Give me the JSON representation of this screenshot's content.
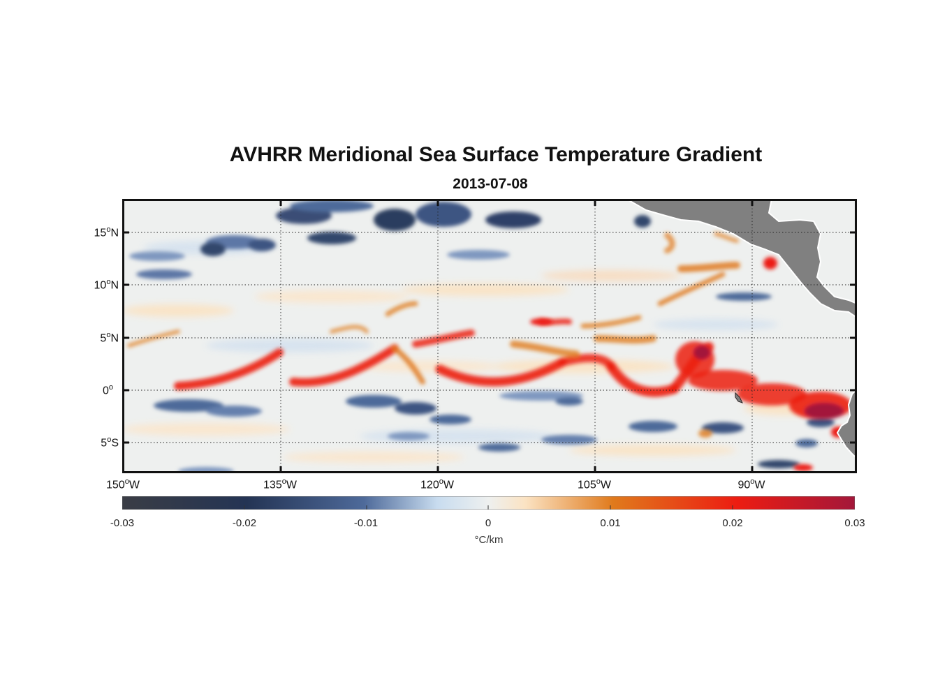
{
  "title": "AVHRR Meridional Sea Surface Temperature Gradient",
  "subtitle": "2013-07-08",
  "map": {
    "lon_range": [
      -150,
      -80
    ],
    "lat_range": [
      -8,
      18
    ],
    "lat_ticks": [
      {
        "value": 15,
        "num": "15",
        "hem": "N"
      },
      {
        "value": 10,
        "num": "10",
        "hem": "N"
      },
      {
        "value": 5,
        "num": "5",
        "hem": "N"
      },
      {
        "value": 0,
        "num": "0",
        "hem": ""
      },
      {
        "value": -5,
        "num": "5",
        "hem": "S"
      }
    ],
    "lon_ticks": [
      {
        "value": -150,
        "num": "150",
        "hem": "W"
      },
      {
        "value": -135,
        "num": "135",
        "hem": "W"
      },
      {
        "value": -120,
        "num": "120",
        "hem": "W"
      },
      {
        "value": -105,
        "num": "105",
        "hem": "W"
      },
      {
        "value": -90,
        "num": "90",
        "hem": "W"
      }
    ],
    "land_color": "#808080"
  },
  "colorbar": {
    "range": [
      -0.03,
      0.03
    ],
    "tick_labels": [
      "-0.03",
      "-0.02",
      "-0.01",
      "0",
      "0.01",
      "0.02",
      "0.03"
    ],
    "unit": "°C/km",
    "colors": [
      "#3a3d45",
      "#243454",
      "#4e6a9a",
      "#c8dcef",
      "#eef0ef",
      "#fbe3c3",
      "#e07a1c",
      "#ec1c12",
      "#a3173a"
    ]
  }
}
